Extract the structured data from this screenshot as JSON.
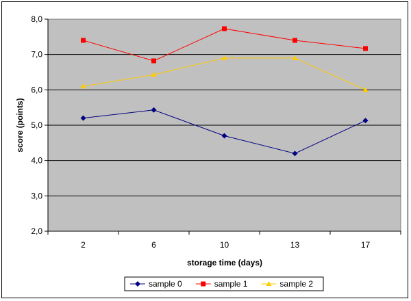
{
  "chart_data": {
    "type": "line",
    "title": "",
    "xlabel": "storage time (days)",
    "ylabel": "score (points)",
    "categories": [
      "2",
      "6",
      "10",
      "13",
      "17"
    ],
    "ylim": [
      2.0,
      8.0
    ],
    "yticks": [
      "2,0",
      "3,0",
      "4,0",
      "5,0",
      "6,0",
      "7,0",
      "8,0"
    ],
    "grid": true,
    "legend_position": "bottom",
    "plot_background": "#c0c0c0",
    "series": [
      {
        "name": "sample 0",
        "color": "#000080",
        "marker": "diamond",
        "values": [
          5.2,
          5.43,
          4.7,
          4.2,
          5.13
        ]
      },
      {
        "name": "sample 1",
        "color": "#ff0000",
        "marker": "square",
        "values": [
          7.4,
          6.82,
          7.73,
          7.4,
          7.17
        ]
      },
      {
        "name": "sample 2",
        "color": "#ffcc00",
        "marker": "triangle",
        "values": [
          6.1,
          6.43,
          6.9,
          6.9,
          6.0
        ]
      }
    ]
  }
}
